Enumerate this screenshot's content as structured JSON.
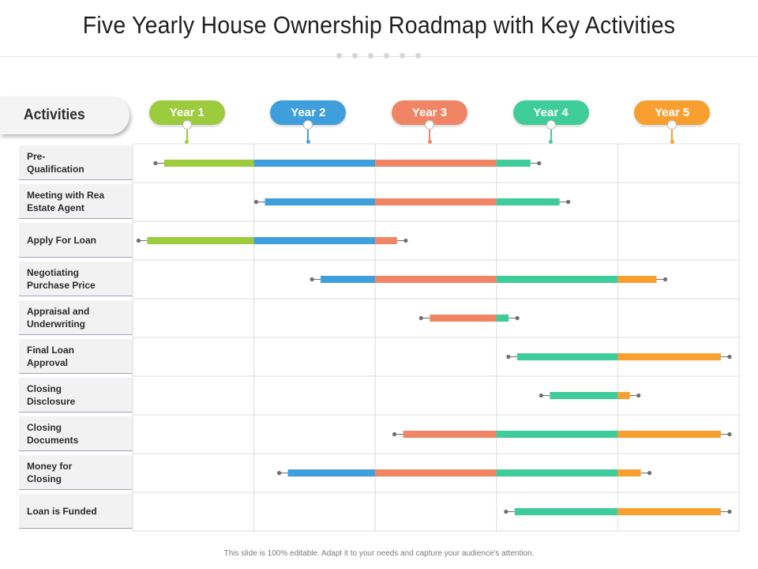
{
  "slide": {
    "title": "Five Yearly House Ownership Roadmap with Key Activities",
    "activities_header": "Activities",
    "footer": "This slide is 100% editable. Adapt it to your needs and capture your audience's attention."
  },
  "colors": {
    "year1": "#9ccc3d",
    "year2": "#3f9fdc",
    "year3": "#f08566",
    "year4": "#3fcc9b",
    "year5": "#f7a030",
    "grid": "#dcdcdc",
    "marker": "#6f6f6f"
  },
  "chart_data": {
    "type": "gantt",
    "title": "Five Yearly House Ownership Roadmap with Key Activities",
    "x_unit": "years",
    "xlim": [
      0,
      5
    ],
    "periods": [
      "Year 1",
      "Year 2",
      "Year 3",
      "Year 4",
      "Year 5"
    ],
    "tasks": [
      {
        "label": "Pre-\nQualification",
        "start": 0.26,
        "end": 3.28
      },
      {
        "label": "Meeting with Rea\nEstate Agent",
        "start": 1.09,
        "end": 3.52
      },
      {
        "label": "Apply For Loan",
        "start": 0.12,
        "end": 2.18
      },
      {
        "label": "Negotiating\nPurchase Price",
        "start": 1.55,
        "end": 4.32
      },
      {
        "label": "Appraisal and\nUnderwriting",
        "start": 2.45,
        "end": 3.1
      },
      {
        "label": "Final Loan\nApproval",
        "start": 3.17,
        "end": 4.85
      },
      {
        "label": "Closing\nDisclosure",
        "start": 3.44,
        "end": 4.1
      },
      {
        "label": "Closing\nDocuments",
        "start": 2.23,
        "end": 4.85
      },
      {
        "label": "Money for\nClosing",
        "start": 1.28,
        "end": 4.19
      },
      {
        "label": "Loan is Funded",
        "start": 3.15,
        "end": 4.85
      }
    ]
  }
}
